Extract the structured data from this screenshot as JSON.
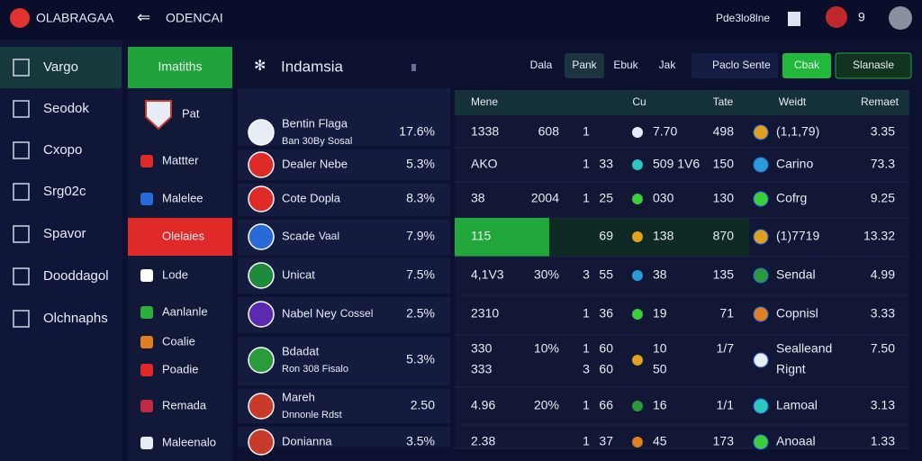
{
  "topbar": {
    "logo": "OLABRAGAA",
    "section": "ODENCAI",
    "user": "Pde3lo8lne",
    "badge": "9"
  },
  "sidebar": [
    "Vargo",
    "Seodok",
    "Cxopo",
    "Srg02c",
    "Spavor",
    "Dooddagol",
    "Olchnaphs"
  ],
  "leagues": {
    "title": "Imatiths",
    "items": [
      "Pat",
      "Mattter",
      "Malelee",
      "Olelaies",
      "Lode",
      "Aanlanle",
      "Coalie",
      "Poadie",
      "Remada",
      "Maleenalo"
    ]
  },
  "header": {
    "title": "Indamsia",
    "tabs": [
      "Dala",
      "Pank",
      "Ebuk",
      "Jak"
    ],
    "filters": [
      "Paclo",
      "Sente"
    ],
    "action": "Cbak",
    "button": "Slanasle"
  },
  "teams": [
    {
      "name": "Bentin Flaga",
      "sub": "Ban 30By Sosal",
      "value": "17.6%",
      "color": "#3aa8f0"
    },
    {
      "name": "Dealer Nebe",
      "value": "5.3%",
      "color": "#3ccf3c"
    },
    {
      "name": "Cote Dopla",
      "value": "8.3%",
      "color": "#f03a3a"
    },
    {
      "name": "Scade",
      "tag": "Vaal",
      "value": "7.9%",
      "color": "#f03a3a"
    },
    {
      "name": "Unicat",
      "value": "7.5%",
      "color": "#2cc8c0"
    },
    {
      "name": "Nabel Ney",
      "tag": "Cossel",
      "value": "2.5%",
      "color": "#f03a3a"
    },
    {
      "name": "Bdadat",
      "sub": "Ron 308 Fisalo",
      "value": "5.3%",
      "color": "#3aa8f0"
    },
    {
      "name": "Mareh",
      "sub": "Dnnonle Rdst",
      "value": "2.50",
      "color": "#3ccf3c"
    },
    {
      "name": "Donianna",
      "value": "3.5%",
      "color": "#3ccf3c"
    }
  ],
  "table": {
    "headers": [
      "Mene",
      "Cu",
      "Tate",
      "Weidt",
      "Remaet"
    ],
    "rows": [
      {
        "cells": [
          "1338",
          "608",
          "1",
          null,
          "7.70",
          "498",
          "(1,1,79)",
          "3.35"
        ],
        "colors": [
          "#e8ecf5",
          "#3ccf3c",
          "#e8ecf5",
          "#e8ecf5",
          "#f03a3a",
          "#e8ecf5",
          "#e8ecf5",
          "#3ccf3c"
        ]
      },
      {
        "cells": [
          "AKO",
          null,
          "1",
          "33",
          "509 1V6",
          "150",
          "Carino",
          "73.3"
        ],
        "colors": [
          "#3ccf3c",
          "#e8ecf5",
          "#e8ecf5",
          "#e8ecf5",
          "#3ccf3c",
          "#3ccf3c",
          "#3ccf3c",
          "#3ccf3c"
        ]
      },
      {
        "cells": [
          "38",
          "2004",
          "1",
          "25",
          "030",
          "130",
          "Cofrg",
          "9.25"
        ],
        "colors": [
          "#e8ecf5",
          "#e8ecf5",
          "#e8ecf5",
          "#e8ecf5",
          "#e8ecf5",
          "#e8ecf5",
          "#3ccf3c",
          "#f03a3a"
        ]
      },
      {
        "cells": [
          "115",
          null,
          null,
          "69",
          "138",
          "870",
          "(1)7719",
          "13.32"
        ],
        "colors": [
          "#e8ecf5",
          "#e8ecf5",
          "#e8ecf5",
          "#e8ecf5",
          "#3ccf3c",
          "#e8ecf5",
          "#f03a3a",
          "#3ccf3c"
        ]
      },
      {
        "cells": [
          "4,1V3",
          "30%",
          "3",
          "55",
          "38",
          "135",
          "Sendal",
          "4.99"
        ],
        "colors": [
          "#e8ecf5",
          "#f03a3a",
          "#e8ecf5",
          "#e8ecf5",
          "#3ccf3c",
          "#3ccf3c",
          "#e8ecf5",
          "#3ccf3c"
        ]
      },
      {
        "cells": [
          "2310",
          null,
          "1",
          "36",
          "19",
          "71",
          "Copnisl",
          "3.33"
        ],
        "colors": [
          "#e8ecf5",
          "#e8ecf5",
          "#e8ecf5",
          "#e8ecf5",
          "#e8ecf5",
          "#e8ecf5",
          "#3ccf3c",
          "#3ccf3c"
        ]
      },
      {
        "cells": [
          "330",
          "10%",
          "1",
          "60",
          "10",
          "1/7",
          "Sealleand",
          "7.50"
        ],
        "colors": [
          "#e8ecf5",
          "#3aa8f0",
          "#e8ecf5",
          "#e8ecf5",
          "#3ccf3c",
          "#e8ecf5",
          "#e8ecf5",
          "#3ccf3c"
        ],
        "cells2": [
          "333",
          null,
          "3",
          "60",
          "50",
          null,
          "Rignt",
          null
        ]
      },
      {
        "cells": [
          "4.96",
          "20%",
          "1",
          "66",
          "16",
          "1/1",
          "Lamoal",
          "3.13"
        ],
        "colors": [
          "#f03a3a",
          "#f03a3a",
          "#e8ecf5",
          "#e8ecf5",
          "#f03a3a",
          "#e8ecf5",
          "#3ccf3c",
          "#3ccf3c"
        ]
      },
      {
        "cells": [
          "2.38",
          null,
          "1",
          "37",
          "45",
          "173",
          "Anoaal",
          "1.33"
        ],
        "colors": [
          "#e8ecf5",
          "#e8ecf5",
          "#e8ecf5",
          "#e8ecf5",
          "#3ccf3c",
          "#3ccf3c",
          "#3ccf3c",
          "#3ccf3c"
        ]
      }
    ]
  }
}
